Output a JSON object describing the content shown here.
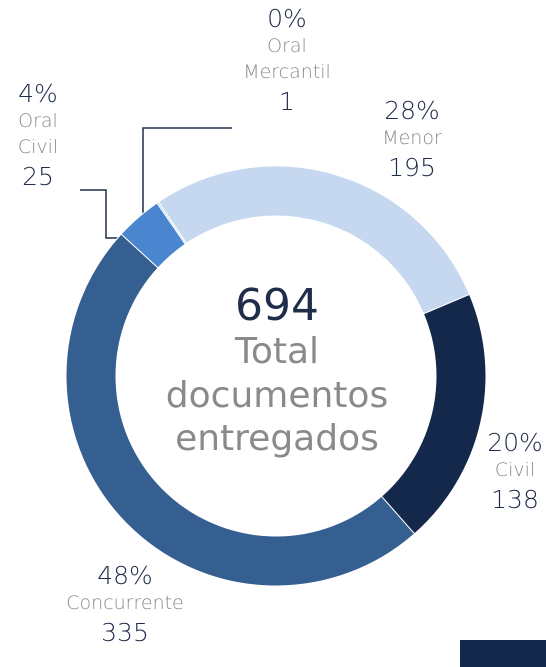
{
  "chart_data": {
    "type": "donut",
    "categories": [
      "Menor",
      "Civil",
      "Concurrente",
      "Oral Civil",
      "Oral Mercantil"
    ],
    "values": [
      195,
      138,
      335,
      25,
      1
    ],
    "percent_labels": [
      "28%",
      "20%",
      "48%",
      "4%",
      "0%"
    ],
    "colors": [
      "#c6d8f0",
      "#13284a",
      "#365f91",
      "#4a86d0",
      "#c6d8f0"
    ],
    "total": 694,
    "center_label": "Total documentos entregados"
  }
}
